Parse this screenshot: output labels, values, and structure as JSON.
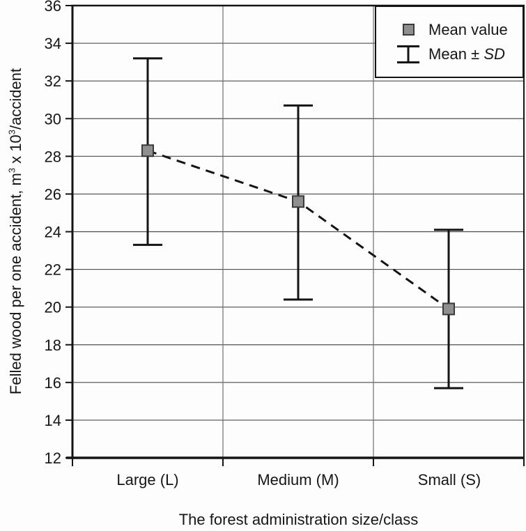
{
  "chart_data": {
    "type": "line",
    "subtype": "means-with-error-bars",
    "title": "",
    "categories": [
      "Large (L)",
      "Medium (M)",
      "Small (S)"
    ],
    "series": [
      {
        "name": "Mean value",
        "means": [
          28.3,
          25.6,
          19.9
        ],
        "upper_sd": [
          33.2,
          30.7,
          24.1
        ],
        "lower_sd": [
          23.3,
          20.4,
          15.7
        ]
      }
    ],
    "xlabel": "The forest administration size/class",
    "ylabel": "Felled wood per one accident, m³ x 10³/accident",
    "ylabel_parts": {
      "text1": "Felled wood per one accident, m",
      "sup1": "3",
      "text2": " x 10",
      "sup2": "3",
      "text3": "/accident"
    },
    "ylim": [
      12,
      36
    ],
    "y_ticks": [
      12,
      14,
      16,
      18,
      20,
      22,
      24,
      26,
      28,
      30,
      32,
      34,
      36
    ],
    "grid": {
      "horizontal": true,
      "vertical_category_boundaries": true
    },
    "line_style": "dashed",
    "legend": {
      "position": "top-right-inside",
      "items": [
        {
          "marker": "square",
          "label": "Mean value"
        },
        {
          "marker": "error-bar",
          "label_prefix": "Mean ± ",
          "label_italic": "SD"
        }
      ]
    },
    "colors": {
      "marker_fill": "#8f8f8f",
      "marker_border": "#3a3a3a",
      "line": "#141414",
      "grid_horizontal": "#4d4d4d",
      "grid_vertical": "#6f6f6f",
      "axis": "#141414",
      "text": "#161616",
      "background": "#fdfdfd"
    }
  }
}
